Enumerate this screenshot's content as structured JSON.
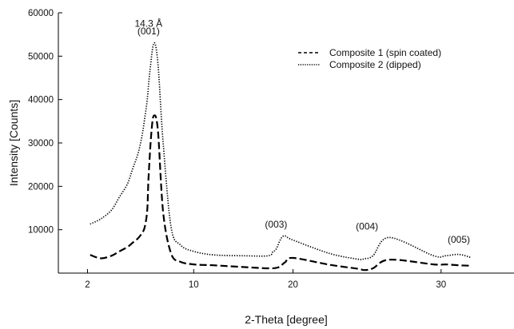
{
  "chart_data": {
    "type": "line",
    "title": "",
    "xlabel": "2-Theta [degree]",
    "ylabel": "Intensity [Counts]",
    "ylim": [
      0,
      60000
    ],
    "y_ticks": [
      10000,
      20000,
      30000,
      40000,
      50000,
      60000
    ],
    "y_tick_labels": [
      "10000",
      "20000",
      "30000",
      "40000",
      "50000",
      "60000"
    ],
    "x_ticks": [
      2,
      10,
      20,
      30
    ],
    "x_tick_labels": [
      "2",
      "10",
      "20",
      "30"
    ],
    "x_scale": "reciprocal",
    "x_label_positions": [
      [
        2,
        6.4
      ],
      [
        10,
        29.7
      ],
      [
        20,
        51.5
      ],
      [
        30,
        84
      ]
    ],
    "grid": false,
    "legend_position": "top-right",
    "series": [
      {
        "name": "Composite 1 (spin coated)",
        "style": "dashed",
        "color": "#000000",
        "x": [
          2.2,
          3.0,
          3.8,
          4.4,
          5.0,
          5.4,
          5.8,
          6.1,
          6.3,
          6.5,
          6.6,
          6.8,
          7.0,
          7.3,
          7.7,
          8.3,
          9.0,
          10.0,
          12.0,
          15.0,
          17.5,
          18.5,
          19.2,
          20.0,
          22.5,
          24.4,
          24.8,
          25.4,
          26.5,
          29.5,
          30.3,
          31.2,
          32.0
        ],
        "y": [
          4200,
          3400,
          4000,
          5000,
          6000,
          7000,
          8000,
          9200,
          10500,
          14500,
          22000,
          32000,
          36300,
          33000,
          14000,
          4500,
          2600,
          2000,
          1800,
          1400,
          1100,
          1300,
          2500,
          3500,
          1900,
          1000,
          700,
          1100,
          3100,
          2000,
          2000,
          1800,
          1700
        ]
      },
      {
        "name": "Composite 2 (dipped)",
        "style": "dotted",
        "color": "#000000",
        "x": [
          2.2,
          3.0,
          3.8,
          4.4,
          5.0,
          5.4,
          5.8,
          6.1,
          6.3,
          6.5,
          6.7,
          7.0,
          7.3,
          7.7,
          8.3,
          9.0,
          10.0,
          12.0,
          15.0,
          17.5,
          18.0,
          18.3,
          19.0,
          20.0,
          22.5,
          24.4,
          24.8,
          25.4,
          26.5,
          29.5,
          30.3,
          31.2,
          32.0
        ],
        "y": [
          11300,
          12500,
          14500,
          17500,
          20500,
          24000,
          27500,
          31500,
          35500,
          40000,
          46500,
          53000,
          48500,
          30000,
          10500,
          6500,
          5000,
          4200,
          4000,
          4000,
          5000,
          5500,
          8500,
          7600,
          4500,
          3200,
          3300,
          4000,
          8200,
          4000,
          4000,
          4300,
          3600
        ]
      }
    ],
    "annotations": [
      {
        "text": "14.3 Å",
        "x": 6.6,
        "y": 56800
      },
      {
        "text": "(001)",
        "x": 6.6,
        "y": 55000
      },
      {
        "text": "(003)",
        "x": 18.3,
        "y": 10500
      },
      {
        "text": "(004)",
        "x": 25.0,
        "y": 10000
      },
      {
        "text": "(005)",
        "x": 31.2,
        "y": 7000
      }
    ]
  }
}
